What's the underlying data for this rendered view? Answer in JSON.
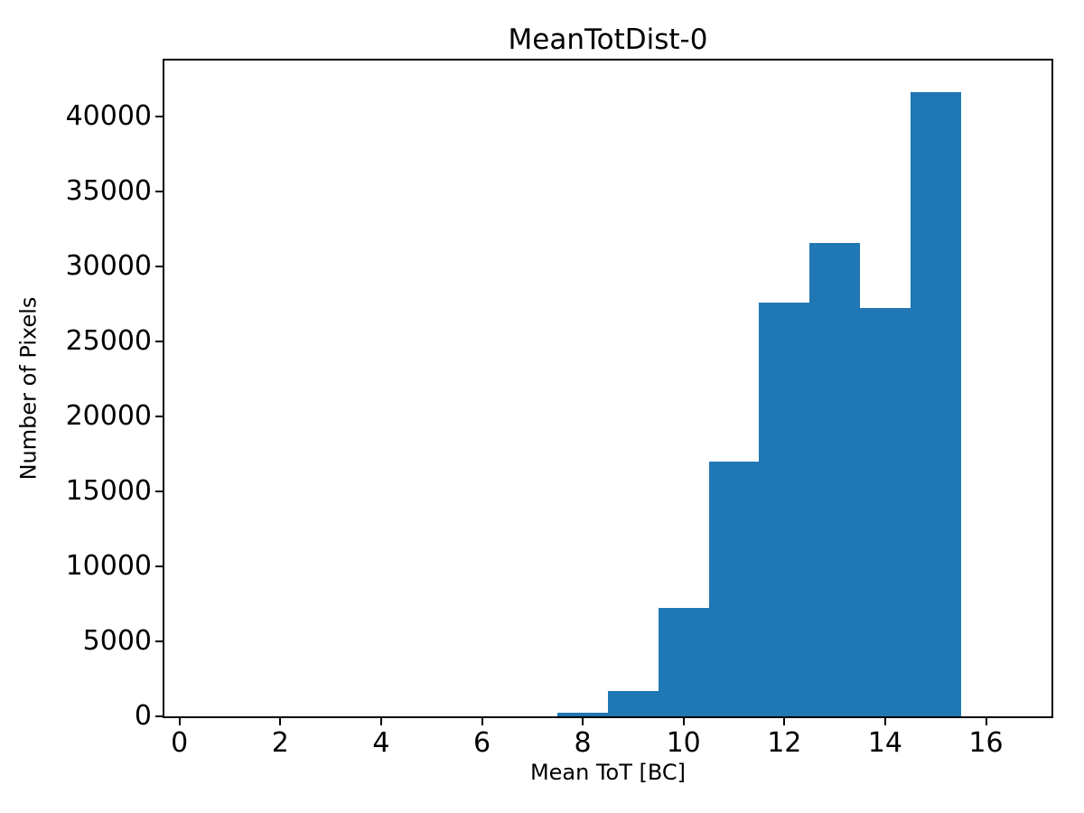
{
  "figure": {
    "background": "#ffffff",
    "text_color": "#000000"
  },
  "chart_data": {
    "type": "bar",
    "subtype": "histogram",
    "title": "MeanTotDist-0",
    "xlabel": "Mean ToT [BC]",
    "ylabel": "Number of Pixels",
    "bar_color": "#1f77b4",
    "grid": false,
    "legend": "none",
    "bin_width": 1,
    "bin_left_edges": [
      7.5,
      8.5,
      9.5,
      10.5,
      11.5,
      12.5,
      13.5,
      14.5
    ],
    "values": [
      250,
      1700,
      7250,
      17000,
      27600,
      31600,
      27250,
      41650
    ],
    "xlim": [
      -0.3,
      17.3
    ],
    "ylim": [
      0,
      43750
    ],
    "xticks": [
      0,
      2,
      4,
      6,
      8,
      10,
      12,
      14,
      16
    ],
    "yticks": [
      0,
      5000,
      10000,
      15000,
      20000,
      25000,
      30000,
      35000,
      40000
    ],
    "xtick_labels": [
      "0",
      "2",
      "4",
      "6",
      "8",
      "10",
      "12",
      "14",
      "16"
    ],
    "ytick_labels": [
      "0",
      "5000",
      "10000",
      "15000",
      "20000",
      "25000",
      "30000",
      "35000",
      "40000"
    ]
  }
}
